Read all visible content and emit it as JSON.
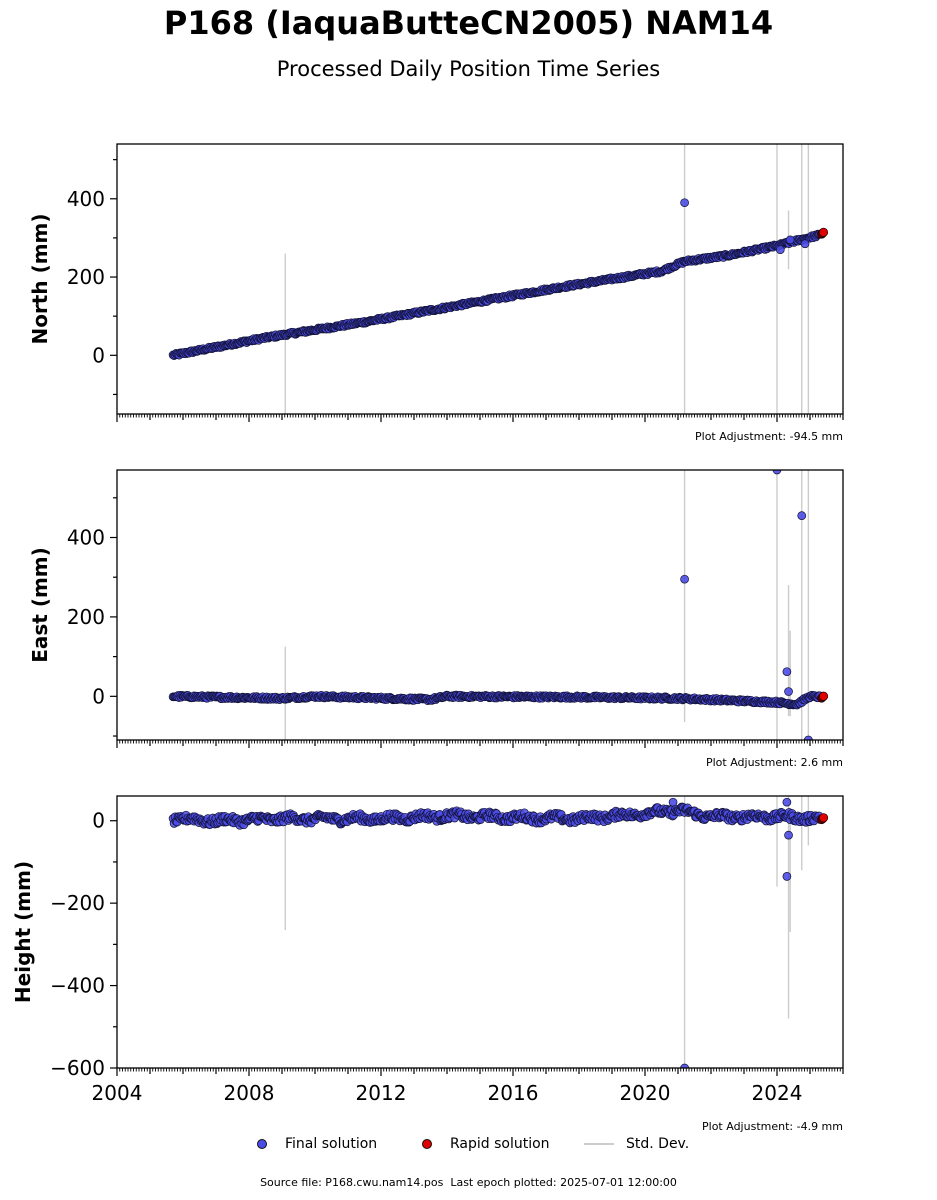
{
  "header": {
    "title": "P168 (IaquaButteCN2005) NAM14",
    "subtitle": "Processed Daily Position Time Series"
  },
  "legend": {
    "final": "Final solution",
    "rapid": "Rapid solution",
    "stddev": "Std. Dev."
  },
  "footer": {
    "source_label": "Source file: P168.cwu.nam14.pos",
    "last_epoch_label": "Last epoch plotted: 2025-07-01 12:00:00"
  },
  "colors": {
    "final": "#4b4be6",
    "rapid": "#e00000",
    "stddev": "#cccccc",
    "edge": "#111133"
  },
  "chart_data": [
    {
      "type": "scatter",
      "ylabel": "North (mm)",
      "adjustment": "Plot Adjustment: -94.5 mm",
      "xlim": [
        2004.0,
        2026.0
      ],
      "ylim": [
        -150,
        540
      ],
      "yticks": [
        0,
        200,
        400
      ],
      "xticks": [
        2004,
        2008,
        2012,
        2016,
        2020,
        2024
      ],
      "trend": [
        [
          2005.7,
          0
        ],
        [
          2008.5,
          45
        ],
        [
          2011.5,
          85
        ],
        [
          2014.5,
          130
        ],
        [
          2017.5,
          175
        ],
        [
          2020.5,
          215
        ],
        [
          2021.2,
          240
        ],
        [
          2022.5,
          255
        ],
        [
          2024.0,
          280
        ],
        [
          2025.4,
          310
        ]
      ],
      "rapid_point": [
        2025.35,
        312
      ],
      "outliers": [
        [
          2021.2,
          390
        ],
        [
          2024.1,
          270
        ],
        [
          2024.4,
          295
        ],
        [
          2024.85,
          285
        ]
      ],
      "errorbars": [
        [
          2009.1,
          -150,
          260
        ],
        [
          2021.2,
          -150,
          540
        ],
        [
          2024.0,
          -150,
          540
        ],
        [
          2024.35,
          220,
          370
        ],
        [
          2024.75,
          -150,
          540
        ],
        [
          2024.95,
          -150,
          540
        ]
      ]
    },
    {
      "type": "scatter",
      "ylabel": "East (mm)",
      "adjustment": "Plot Adjustment: 2.6 mm",
      "xlim": [
        2004.0,
        2026.0
      ],
      "ylim": [
        -110,
        570
      ],
      "yticks": [
        0,
        200,
        400
      ],
      "xticks": [
        2004,
        2008,
        2012,
        2016,
        2020,
        2024
      ],
      "trend": [
        [
          2005.7,
          0
        ],
        [
          2009.0,
          -5
        ],
        [
          2010.0,
          0
        ],
        [
          2013.5,
          -8
        ],
        [
          2014.0,
          0
        ],
        [
          2018.0,
          -2
        ],
        [
          2021.0,
          -5
        ],
        [
          2022.5,
          -10
        ],
        [
          2024.0,
          -15
        ],
        [
          2024.6,
          -20
        ],
        [
          2025.0,
          0
        ],
        [
          2025.4,
          -2
        ]
      ],
      "rapid_point": [
        2025.35,
        -2
      ],
      "outliers": [
        [
          2021.2,
          295
        ],
        [
          2024.0,
          570
        ],
        [
          2024.3,
          62
        ],
        [
          2024.35,
          12
        ],
        [
          2024.75,
          455
        ],
        [
          2024.95,
          -110
        ]
      ],
      "errorbars": [
        [
          2009.1,
          -110,
          125
        ],
        [
          2021.2,
          -65,
          570
        ],
        [
          2024.0,
          -110,
          570
        ],
        [
          2024.35,
          -50,
          280
        ],
        [
          2024.4,
          -50,
          165
        ],
        [
          2024.75,
          -110,
          570
        ],
        [
          2024.95,
          -110,
          570
        ]
      ]
    },
    {
      "type": "scatter",
      "ylabel": "Height (mm)",
      "adjustment": "Plot Adjustment: -4.9 mm",
      "xlim": [
        2004.0,
        2026.0
      ],
      "ylim": [
        -600,
        60
      ],
      "yticks": [
        -600,
        -400,
        -200,
        0
      ],
      "xticks": [
        2004,
        2008,
        2012,
        2016,
        2020,
        2024
      ],
      "trend": [
        [
          2005.7,
          5
        ],
        [
          2007.0,
          0
        ],
        [
          2009.0,
          5
        ],
        [
          2012.0,
          5
        ],
        [
          2014.0,
          12
        ],
        [
          2016.0,
          8
        ],
        [
          2018.0,
          5
        ],
        [
          2020.0,
          18
        ],
        [
          2021.0,
          25
        ],
        [
          2022.0,
          10
        ],
        [
          2024.0,
          10
        ],
        [
          2025.4,
          5
        ]
      ],
      "rapid_point": [
        2025.35,
        5
      ],
      "outliers": [
        [
          2020.85,
          45
        ],
        [
          2021.2,
          -600
        ],
        [
          2024.3,
          -135
        ],
        [
          2024.35,
          -35
        ],
        [
          2024.3,
          45
        ]
      ],
      "errorbars": [
        [
          2009.1,
          -265,
          60
        ],
        [
          2021.2,
          -600,
          60
        ],
        [
          2024.0,
          -160,
          60
        ],
        [
          2024.35,
          -480,
          60
        ],
        [
          2024.4,
          -270,
          30
        ],
        [
          2024.75,
          -120,
          60
        ],
        [
          2024.95,
          -60,
          60
        ]
      ]
    }
  ]
}
